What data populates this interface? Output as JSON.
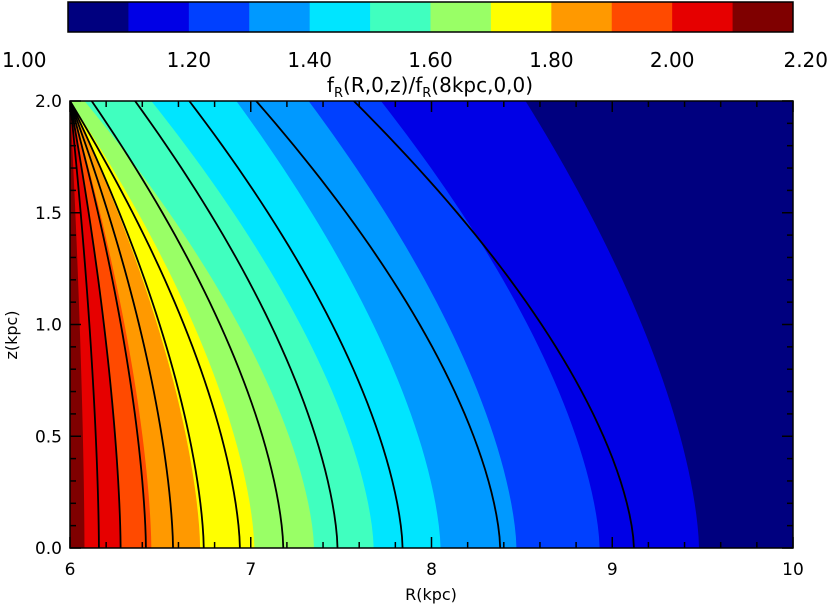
{
  "chart_data": {
    "type": "heatmap",
    "subtype": "filled-contour",
    "colorbar": {
      "title_parts": {
        "f1": "f",
        "sub1": "R",
        "rest1": "(R,0,z)/",
        "f2": "f",
        "sub2": "R",
        "rest2": "(8kpc,0,0)"
      },
      "tick_labels": [
        "1.00",
        "1.20",
        "1.40",
        "1.60",
        "1.80",
        "2.00",
        "2.20"
      ],
      "range": [
        1.0,
        2.2
      ],
      "levels": [
        1.0,
        1.1,
        1.2,
        1.3,
        1.4,
        1.5,
        1.6,
        1.7,
        1.8,
        1.9,
        2.0,
        2.1,
        2.2
      ],
      "colors": [
        "#00007f",
        "#0000e6",
        "#0040ff",
        "#0099ff",
        "#00e5ff",
        "#40ffbf",
        "#99ff66",
        "#ffff00",
        "#ff9900",
        "#ff4a00",
        "#e60000",
        "#7f0000"
      ],
      "placement": "top"
    },
    "xlabel": "R(kpc)",
    "ylabel": "z(kpc)",
    "xlim": [
      6,
      10
    ],
    "ylim": [
      0,
      2
    ],
    "x_tick_labels": [
      "6",
      "7",
      "8",
      "9",
      "10"
    ],
    "y_tick_labels": [
      "0.0",
      "0.5",
      "1.0",
      "1.5",
      "2.0"
    ],
    "fill_boundaries": [
      {
        "level": 2.1,
        "z0": 6.08,
        "z2": 6.0
      },
      {
        "level": 2.0,
        "z0": 6.28,
        "z2": 6.0
      },
      {
        "level": 1.9,
        "z0": 6.45,
        "z2": 6.0
      },
      {
        "level": 1.8,
        "z0": 6.72,
        "z2": 6.0
      },
      {
        "level": 1.7,
        "z0": 7.02,
        "z2": 6.0
      },
      {
        "level": 1.6,
        "z0": 7.35,
        "z2": 6.08
      },
      {
        "level": 1.5,
        "z0": 7.68,
        "z2": 6.45
      },
      {
        "level": 1.4,
        "z0": 8.05,
        "z2": 6.92
      },
      {
        "level": 1.3,
        "z0": 8.47,
        "z2": 7.32
      },
      {
        "level": 1.2,
        "z0": 8.93,
        "z2": 7.72
      },
      {
        "level": 1.1,
        "z0": 9.48,
        "z2": 8.52
      }
    ],
    "contour_lines": [
      {
        "z0": 6.16,
        "z2": 6.0
      },
      {
        "z0": 6.28,
        "z2": 6.0
      },
      {
        "z0": 6.42,
        "z2": 6.0
      },
      {
        "z0": 6.57,
        "z2": 6.0
      },
      {
        "z0": 6.74,
        "z2": 6.0
      },
      {
        "z0": 6.94,
        "z2": 6.0
      },
      {
        "z0": 7.18,
        "z2": 6.12
      },
      {
        "z0": 7.48,
        "z2": 6.36
      },
      {
        "z0": 7.84,
        "z2": 6.66
      },
      {
        "z0": 8.38,
        "z2": 7.03
      },
      {
        "z0": 9.12,
        "z2": 7.57
      }
    ]
  }
}
